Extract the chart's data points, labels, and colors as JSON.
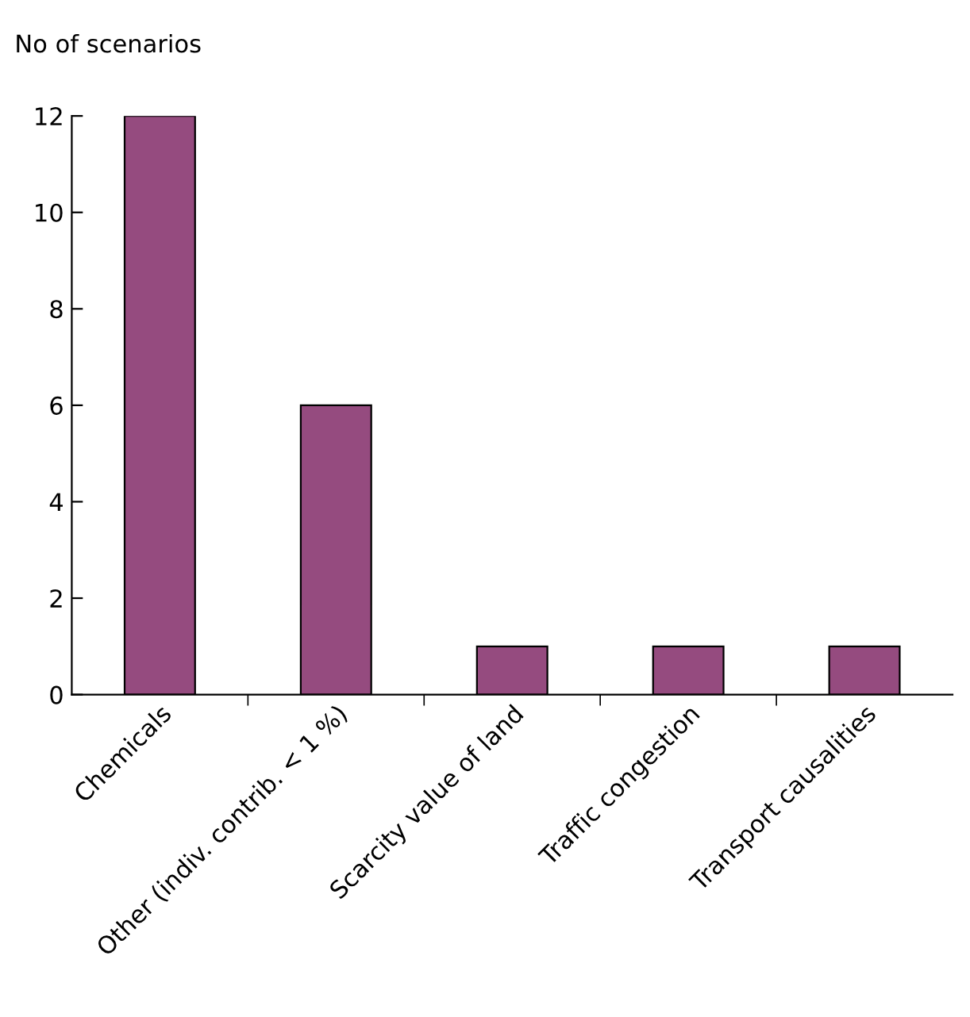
{
  "chart_data": {
    "type": "bar",
    "ylabel": "No of scenarios",
    "categories": [
      "Chemicals",
      "Other (indiv. contrib. < 1 %)",
      "Scarcity value of land",
      "Traffic congestion",
      "Transport causalities"
    ],
    "values": [
      12,
      6,
      1,
      1,
      1
    ],
    "color": "#954b7f",
    "ylim": [
      0,
      12
    ],
    "yticks": [
      0,
      2,
      4,
      6,
      8,
      10,
      12
    ],
    "grid": false
  }
}
